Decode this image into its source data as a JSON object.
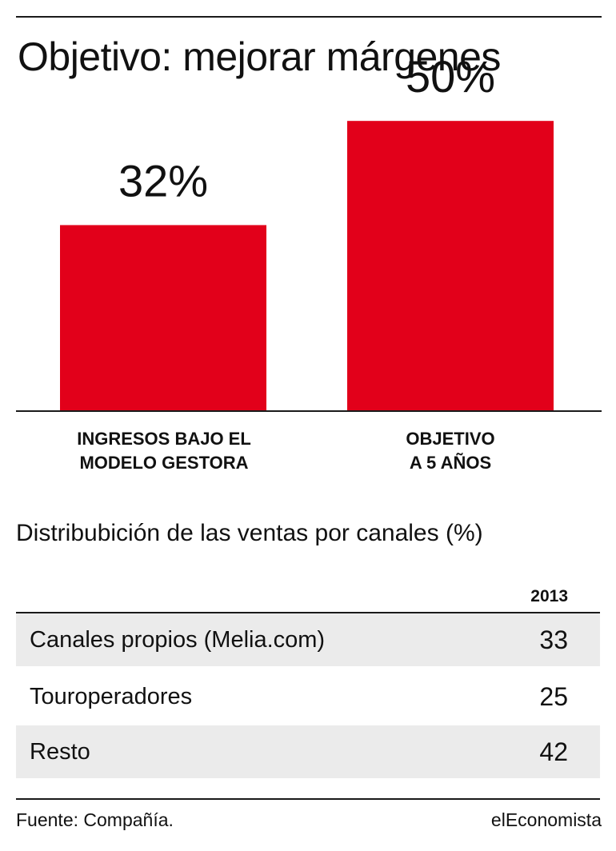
{
  "title": "Objetivo: mejorar márgenes",
  "chart_data": {
    "type": "bar",
    "categories": [
      "INGRESOS BAJO EL\nMODELO GESTORA",
      "OBJETIVO\nA 5 AÑOS"
    ],
    "values": [
      32,
      50
    ],
    "value_labels": [
      "32%",
      "50%"
    ],
    "ylim": [
      0,
      55
    ],
    "grid": false,
    "bar_color": "#e2001a"
  },
  "table": {
    "title": "Distribubición de las ventas por canales (%)",
    "column_header": "2013",
    "rows": [
      {
        "label": "Canales propios (Melia.com)",
        "value": "33"
      },
      {
        "label": "Touroperadores",
        "value": "25"
      },
      {
        "label": "Resto",
        "value": "42"
      }
    ]
  },
  "footer": {
    "source": "Fuente: Compañía.",
    "brand": "elEconomista"
  }
}
